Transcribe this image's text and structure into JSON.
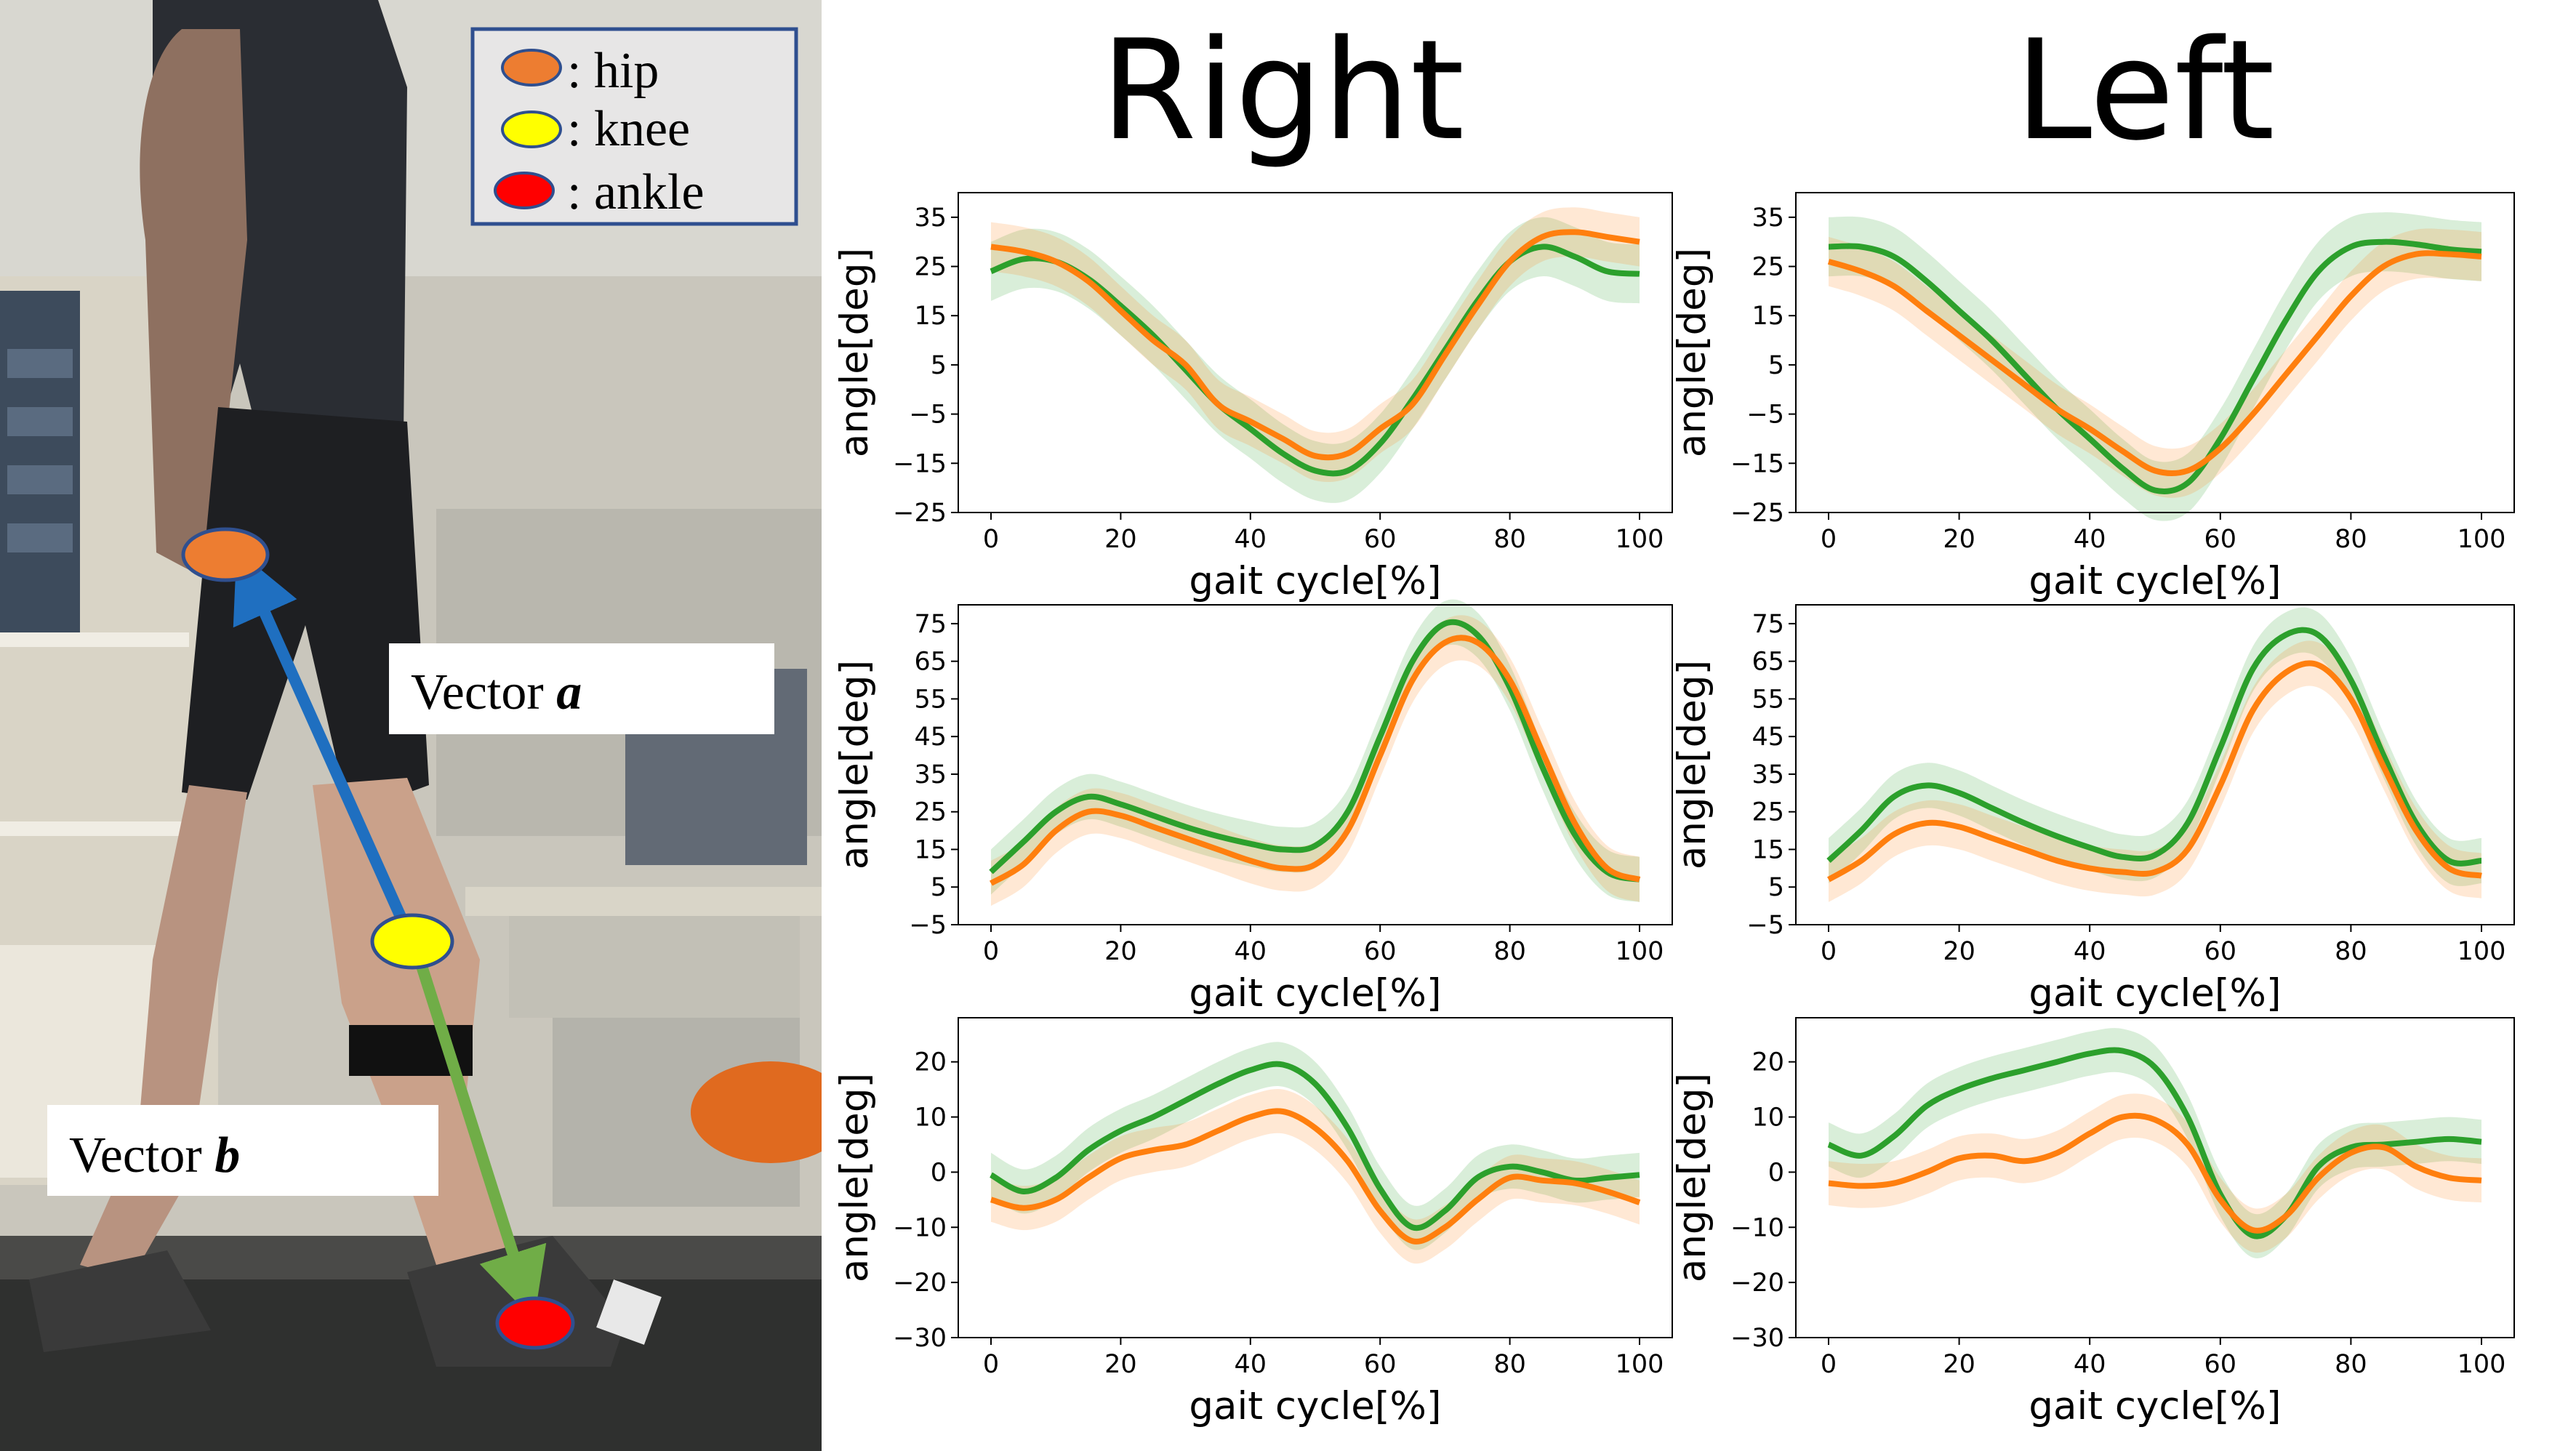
{
  "column_titles": {
    "right": "Right",
    "left": "Left"
  },
  "photo": {
    "legend": [
      {
        "label": ": hip",
        "color": "#ed7d31"
      },
      {
        "label": ": knee",
        "color": "#ffff00"
      },
      {
        "label": ": ankle",
        "color": "#ff0000"
      }
    ],
    "vector_a": {
      "prefix": "Vector ",
      "name": "a"
    },
    "vector_b": {
      "prefix": "Vector ",
      "name": "b"
    },
    "colors": {
      "vector_a": "#1f6fc0",
      "vector_b": "#70ad47"
    }
  },
  "series_colors": {
    "green": "#2ca02c",
    "orange": "#ff7f0e"
  },
  "chart_data": [
    {
      "type": "line",
      "side": "Right",
      "joint": "hip",
      "xlabel": "gait cycle[%]",
      "ylabel": "angle[deg]",
      "xlim": [
        0,
        100
      ],
      "ylim": [
        -25,
        40
      ],
      "xticks": [
        0,
        20,
        40,
        60,
        80,
        100
      ],
      "yticks": [
        -25,
        -15,
        -5,
        5,
        15,
        25,
        35
      ],
      "x": [
        0,
        5,
        10,
        15,
        20,
        25,
        30,
        35,
        40,
        45,
        50,
        55,
        60,
        65,
        70,
        75,
        80,
        85,
        90,
        95,
        100
      ],
      "series": [
        {
          "color": "green",
          "values": [
            24,
            26.5,
            26,
            22.5,
            17,
            11,
            4,
            -3,
            -8,
            -13,
            -16.5,
            -16.5,
            -11,
            -2,
            8,
            18,
            26,
            29,
            27,
            24,
            23.5
          ],
          "band": 6
        },
        {
          "color": "orange",
          "values": [
            29,
            28,
            26,
            22,
            16,
            10,
            5,
            -3,
            -6.5,
            -10,
            -13.5,
            -13,
            -8,
            -3,
            7,
            17,
            26,
            31,
            32,
            31,
            30
          ],
          "band": 5
        }
      ]
    },
    {
      "type": "line",
      "side": "Left",
      "joint": "hip",
      "xlabel": "gait cycle[%]",
      "ylabel": "angle[deg]",
      "xlim": [
        0,
        100
      ],
      "ylim": [
        -25,
        40
      ],
      "xticks": [
        0,
        20,
        40,
        60,
        80,
        100
      ],
      "yticks": [
        -25,
        -15,
        -5,
        5,
        15,
        25,
        35
      ],
      "x": [
        0,
        5,
        10,
        15,
        20,
        25,
        30,
        35,
        40,
        45,
        50,
        55,
        60,
        65,
        70,
        75,
        80,
        85,
        90,
        95,
        100
      ],
      "series": [
        {
          "color": "green",
          "values": [
            29,
            29,
            27,
            22,
            16,
            10,
            3,
            -4,
            -10,
            -16,
            -20.5,
            -19,
            -10,
            2,
            14,
            24,
            29,
            30,
            29.5,
            28.5,
            28
          ],
          "band": 6
        },
        {
          "color": "orange",
          "values": [
            26,
            24,
            21,
            16,
            11,
            6,
            1,
            -4,
            -8,
            -12.5,
            -16.5,
            -16.5,
            -12,
            -5,
            3,
            11,
            19,
            25,
            27.5,
            27.5,
            27
          ],
          "band": 5
        }
      ]
    },
    {
      "type": "line",
      "side": "Right",
      "joint": "knee",
      "xlabel": "gait cycle[%]",
      "ylabel": "angle[deg]",
      "xlim": [
        0,
        100
      ],
      "ylim": [
        -5,
        80
      ],
      "xticks": [
        0,
        20,
        40,
        60,
        80,
        100
      ],
      "yticks": [
        -5,
        5,
        15,
        25,
        35,
        45,
        55,
        65,
        75
      ],
      "x": [
        0,
        5,
        10,
        15,
        20,
        25,
        30,
        35,
        40,
        45,
        50,
        55,
        60,
        65,
        70,
        75,
        80,
        85,
        90,
        95,
        100
      ],
      "series": [
        {
          "color": "green",
          "values": [
            9,
            17,
            25,
            29,
            27,
            24,
            21,
            18.5,
            16.5,
            15,
            16,
            25,
            45,
            65,
            75,
            72,
            58,
            37,
            19,
            9,
            7
          ],
          "band": 6
        },
        {
          "color": "orange",
          "values": [
            6,
            11,
            20,
            25,
            24,
            21,
            18,
            15,
            12,
            10,
            11,
            20,
            40,
            60,
            70,
            70,
            60,
            41,
            22,
            10,
            7
          ],
          "band": 6
        }
      ]
    },
    {
      "type": "line",
      "side": "Left",
      "joint": "knee",
      "xlabel": "gait cycle[%]",
      "ylabel": "angle[deg]",
      "xlim": [
        0,
        100
      ],
      "ylim": [
        -5,
        80
      ],
      "xticks": [
        0,
        20,
        40,
        60,
        80,
        100
      ],
      "yticks": [
        -5,
        5,
        15,
        25,
        35,
        45,
        55,
        65,
        75
      ],
      "x": [
        0,
        5,
        10,
        15,
        20,
        25,
        30,
        35,
        40,
        45,
        50,
        55,
        60,
        65,
        70,
        75,
        80,
        85,
        90,
        95,
        100
      ],
      "series": [
        {
          "color": "green",
          "values": [
            12,
            20,
            29,
            32,
            30,
            26,
            22,
            18.5,
            15.5,
            13,
            13.5,
            22,
            42,
            63,
            72,
            72,
            60,
            40,
            22,
            12,
            12
          ],
          "band": 6
        },
        {
          "color": "orange",
          "values": [
            7,
            12,
            19,
            22,
            21,
            18,
            15,
            12,
            10,
            9,
            9,
            15,
            32,
            52,
            62,
            64,
            55,
            37,
            20,
            10,
            8
          ],
          "band": 6
        }
      ]
    },
    {
      "type": "line",
      "side": "Right",
      "joint": "ankle",
      "xlabel": "gait cycle[%]",
      "ylabel": "angle[deg]",
      "xlim": [
        0,
        100
      ],
      "ylim": [
        -30,
        28
      ],
      "xticks": [
        0,
        20,
        40,
        60,
        80,
        100
      ],
      "yticks": [
        -30,
        -20,
        -10,
        0,
        10,
        20
      ],
      "x": [
        0,
        5,
        10,
        15,
        20,
        25,
        30,
        35,
        40,
        45,
        50,
        55,
        60,
        65,
        70,
        75,
        80,
        85,
        90,
        95,
        100
      ],
      "series": [
        {
          "color": "green",
          "values": [
            -0.5,
            -3.5,
            -1,
            4,
            7.5,
            10,
            13,
            16,
            18.5,
            19.5,
            16,
            8,
            -3,
            -10,
            -7,
            -1,
            1,
            0,
            -1.5,
            -1,
            -0.5
          ],
          "band": 4
        },
        {
          "color": "orange",
          "values": [
            -5,
            -6.5,
            -5,
            -1,
            2.5,
            4,
            5,
            7.5,
            10,
            11,
            8,
            2,
            -7,
            -12.5,
            -10,
            -5,
            -1,
            -1.5,
            -2,
            -3.5,
            -5.5
          ],
          "band": 4
        }
      ]
    },
    {
      "type": "line",
      "side": "Left",
      "joint": "ankle",
      "xlabel": "gait cycle[%]",
      "ylabel": "angle[deg]",
      "xlim": [
        0,
        100
      ],
      "ylim": [
        -30,
        28
      ],
      "xticks": [
        0,
        20,
        40,
        60,
        80,
        100
      ],
      "yticks": [
        -30,
        -20,
        -10,
        0,
        10,
        20
      ],
      "x": [
        0,
        5,
        10,
        15,
        20,
        25,
        30,
        35,
        40,
        45,
        50,
        55,
        60,
        65,
        70,
        75,
        80,
        85,
        90,
        95,
        100
      ],
      "series": [
        {
          "color": "green",
          "values": [
            5,
            3,
            6.5,
            12,
            15,
            17,
            18.5,
            20,
            21.5,
            22,
            19,
            10,
            -4,
            -11.5,
            -8,
            1,
            4.5,
            5,
            5.5,
            6,
            5.5
          ],
          "band": 4
        },
        {
          "color": "orange",
          "values": [
            -2,
            -2.5,
            -2,
            0,
            2.5,
            3,
            2,
            3.5,
            7,
            10,
            9.5,
            5,
            -5,
            -10.5,
            -8,
            -1,
            3.5,
            4.5,
            1,
            -1,
            -1.5
          ],
          "band": 4
        }
      ]
    }
  ]
}
